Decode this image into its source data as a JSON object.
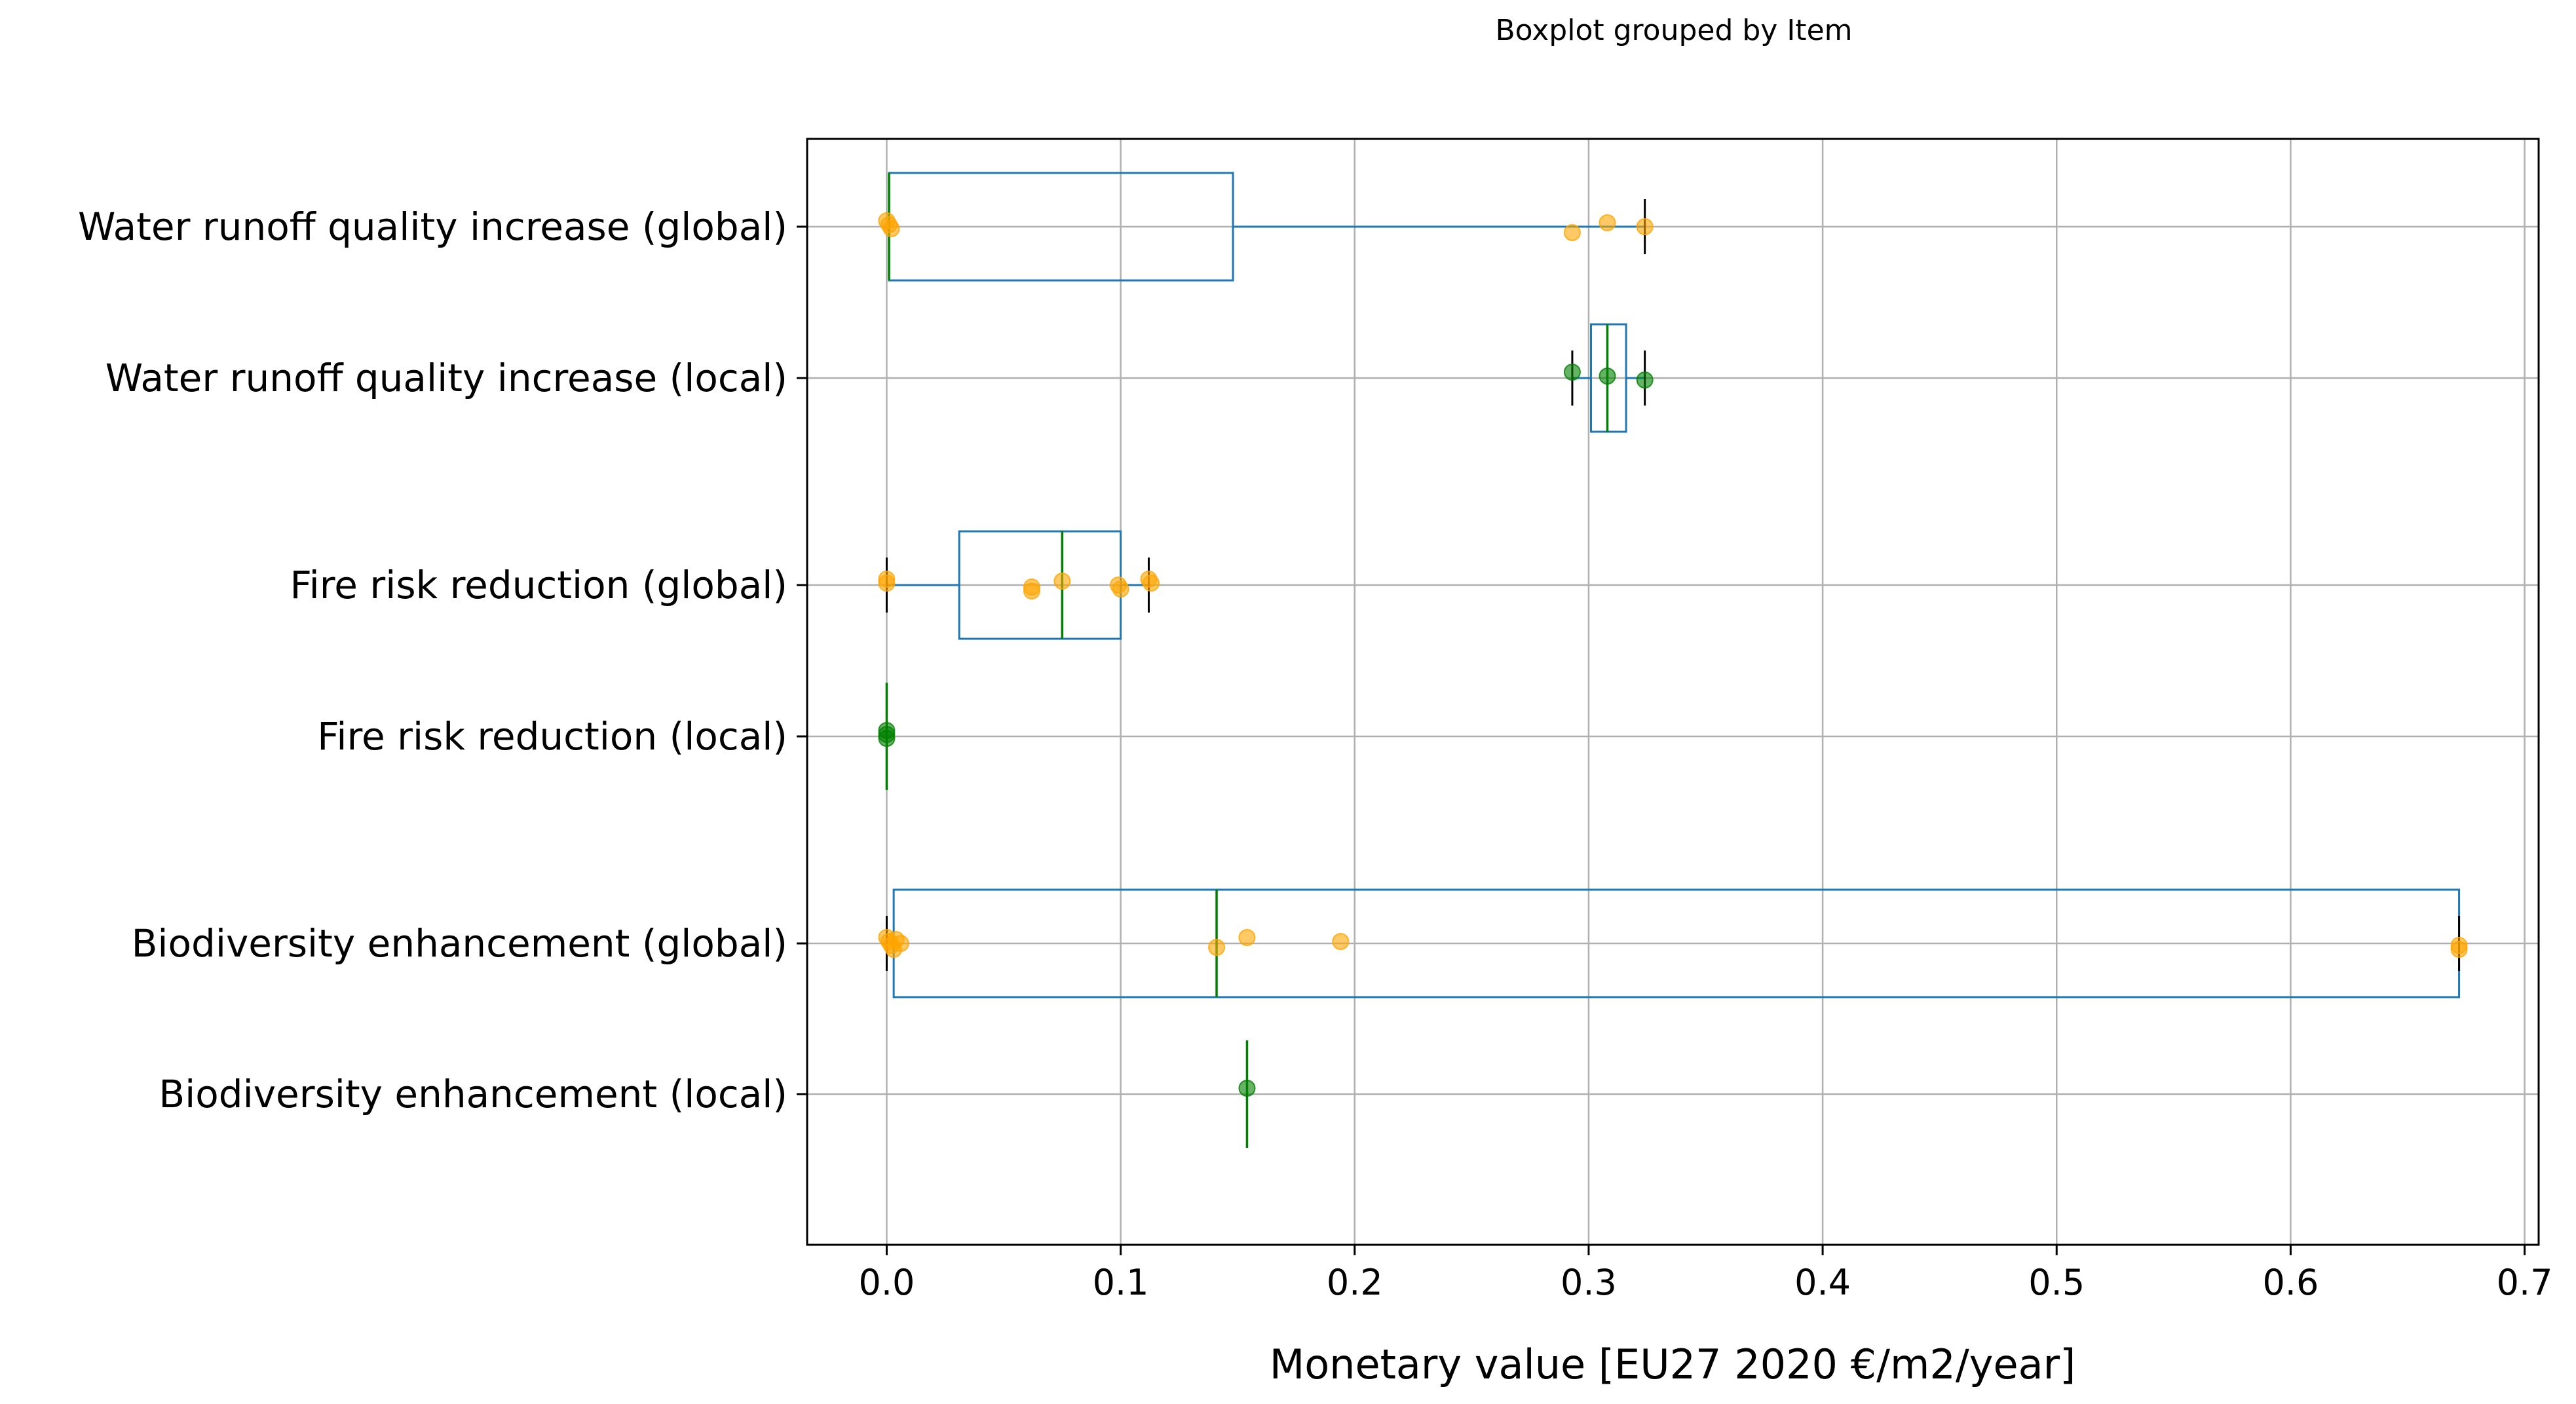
{
  "chart_data": {
    "type": "boxplot",
    "title": "Boxplot grouped by Item",
    "xlabel": "Monetary value [EU27 2020 €/m2/year]",
    "ylabel": "",
    "xlim": [
      -0.034,
      0.706
    ],
    "xticks": [
      0.0,
      0.1,
      0.2,
      0.3,
      0.4,
      0.5,
      0.6,
      0.7
    ],
    "xtick_labels": [
      "0.0",
      "0.1",
      "0.2",
      "0.3",
      "0.4",
      "0.5",
      "0.6",
      "0.7"
    ],
    "grid": true,
    "colors": {
      "box": "#1f77b4",
      "median": "#008000",
      "whisker_cap": "#000000",
      "global_points": "#ffa500",
      "local_points": "#008000",
      "grid": "#b0b0b0"
    },
    "categories": [
      {
        "label": "Water runoff quality increase (global)",
        "box": true,
        "whislo": 0.001,
        "q1": 0.001,
        "med": 0.001,
        "q3": 0.148,
        "whishi": 0.324,
        "points": [
          0.0,
          0.001,
          0.002,
          0.293,
          0.308,
          0.324
        ],
        "point_kind": "global"
      },
      {
        "label": "Water runoff quality increase (local)",
        "box": true,
        "whislo": 0.293,
        "q1": 0.301,
        "med": 0.308,
        "q3": 0.316,
        "whishi": 0.324,
        "points": [
          0.293,
          0.308,
          0.324
        ],
        "point_kind": "local"
      },
      {
        "label": "Fire risk reduction (global)",
        "box": true,
        "whislo": 0.0,
        "q1": 0.031,
        "med": 0.075,
        "q3": 0.1,
        "whishi": 0.112,
        "points": [
          0.0,
          0.0,
          0.062,
          0.062,
          0.075,
          0.099,
          0.1,
          0.112,
          0.113
        ],
        "point_kind": "global"
      },
      {
        "label": "Fire risk reduction (local)",
        "box": false,
        "med": 0.0,
        "points": [
          0.0,
          0.0,
          0.0
        ],
        "point_kind": "local"
      },
      {
        "label": "Biodiversity enhancement (global)",
        "box": true,
        "whislo": 0.0,
        "q1": 0.003,
        "med": 0.141,
        "q3": 0.672,
        "whishi": 0.672,
        "points": [
          0.0,
          0.001,
          0.002,
          0.003,
          0.004,
          0.006,
          0.141,
          0.154,
          0.194,
          0.672,
          0.672
        ],
        "point_kind": "global"
      },
      {
        "label": "Biodiversity enhancement (local)",
        "box": false,
        "med": 0.154,
        "points": [
          0.154
        ],
        "point_kind": "local"
      }
    ]
  }
}
